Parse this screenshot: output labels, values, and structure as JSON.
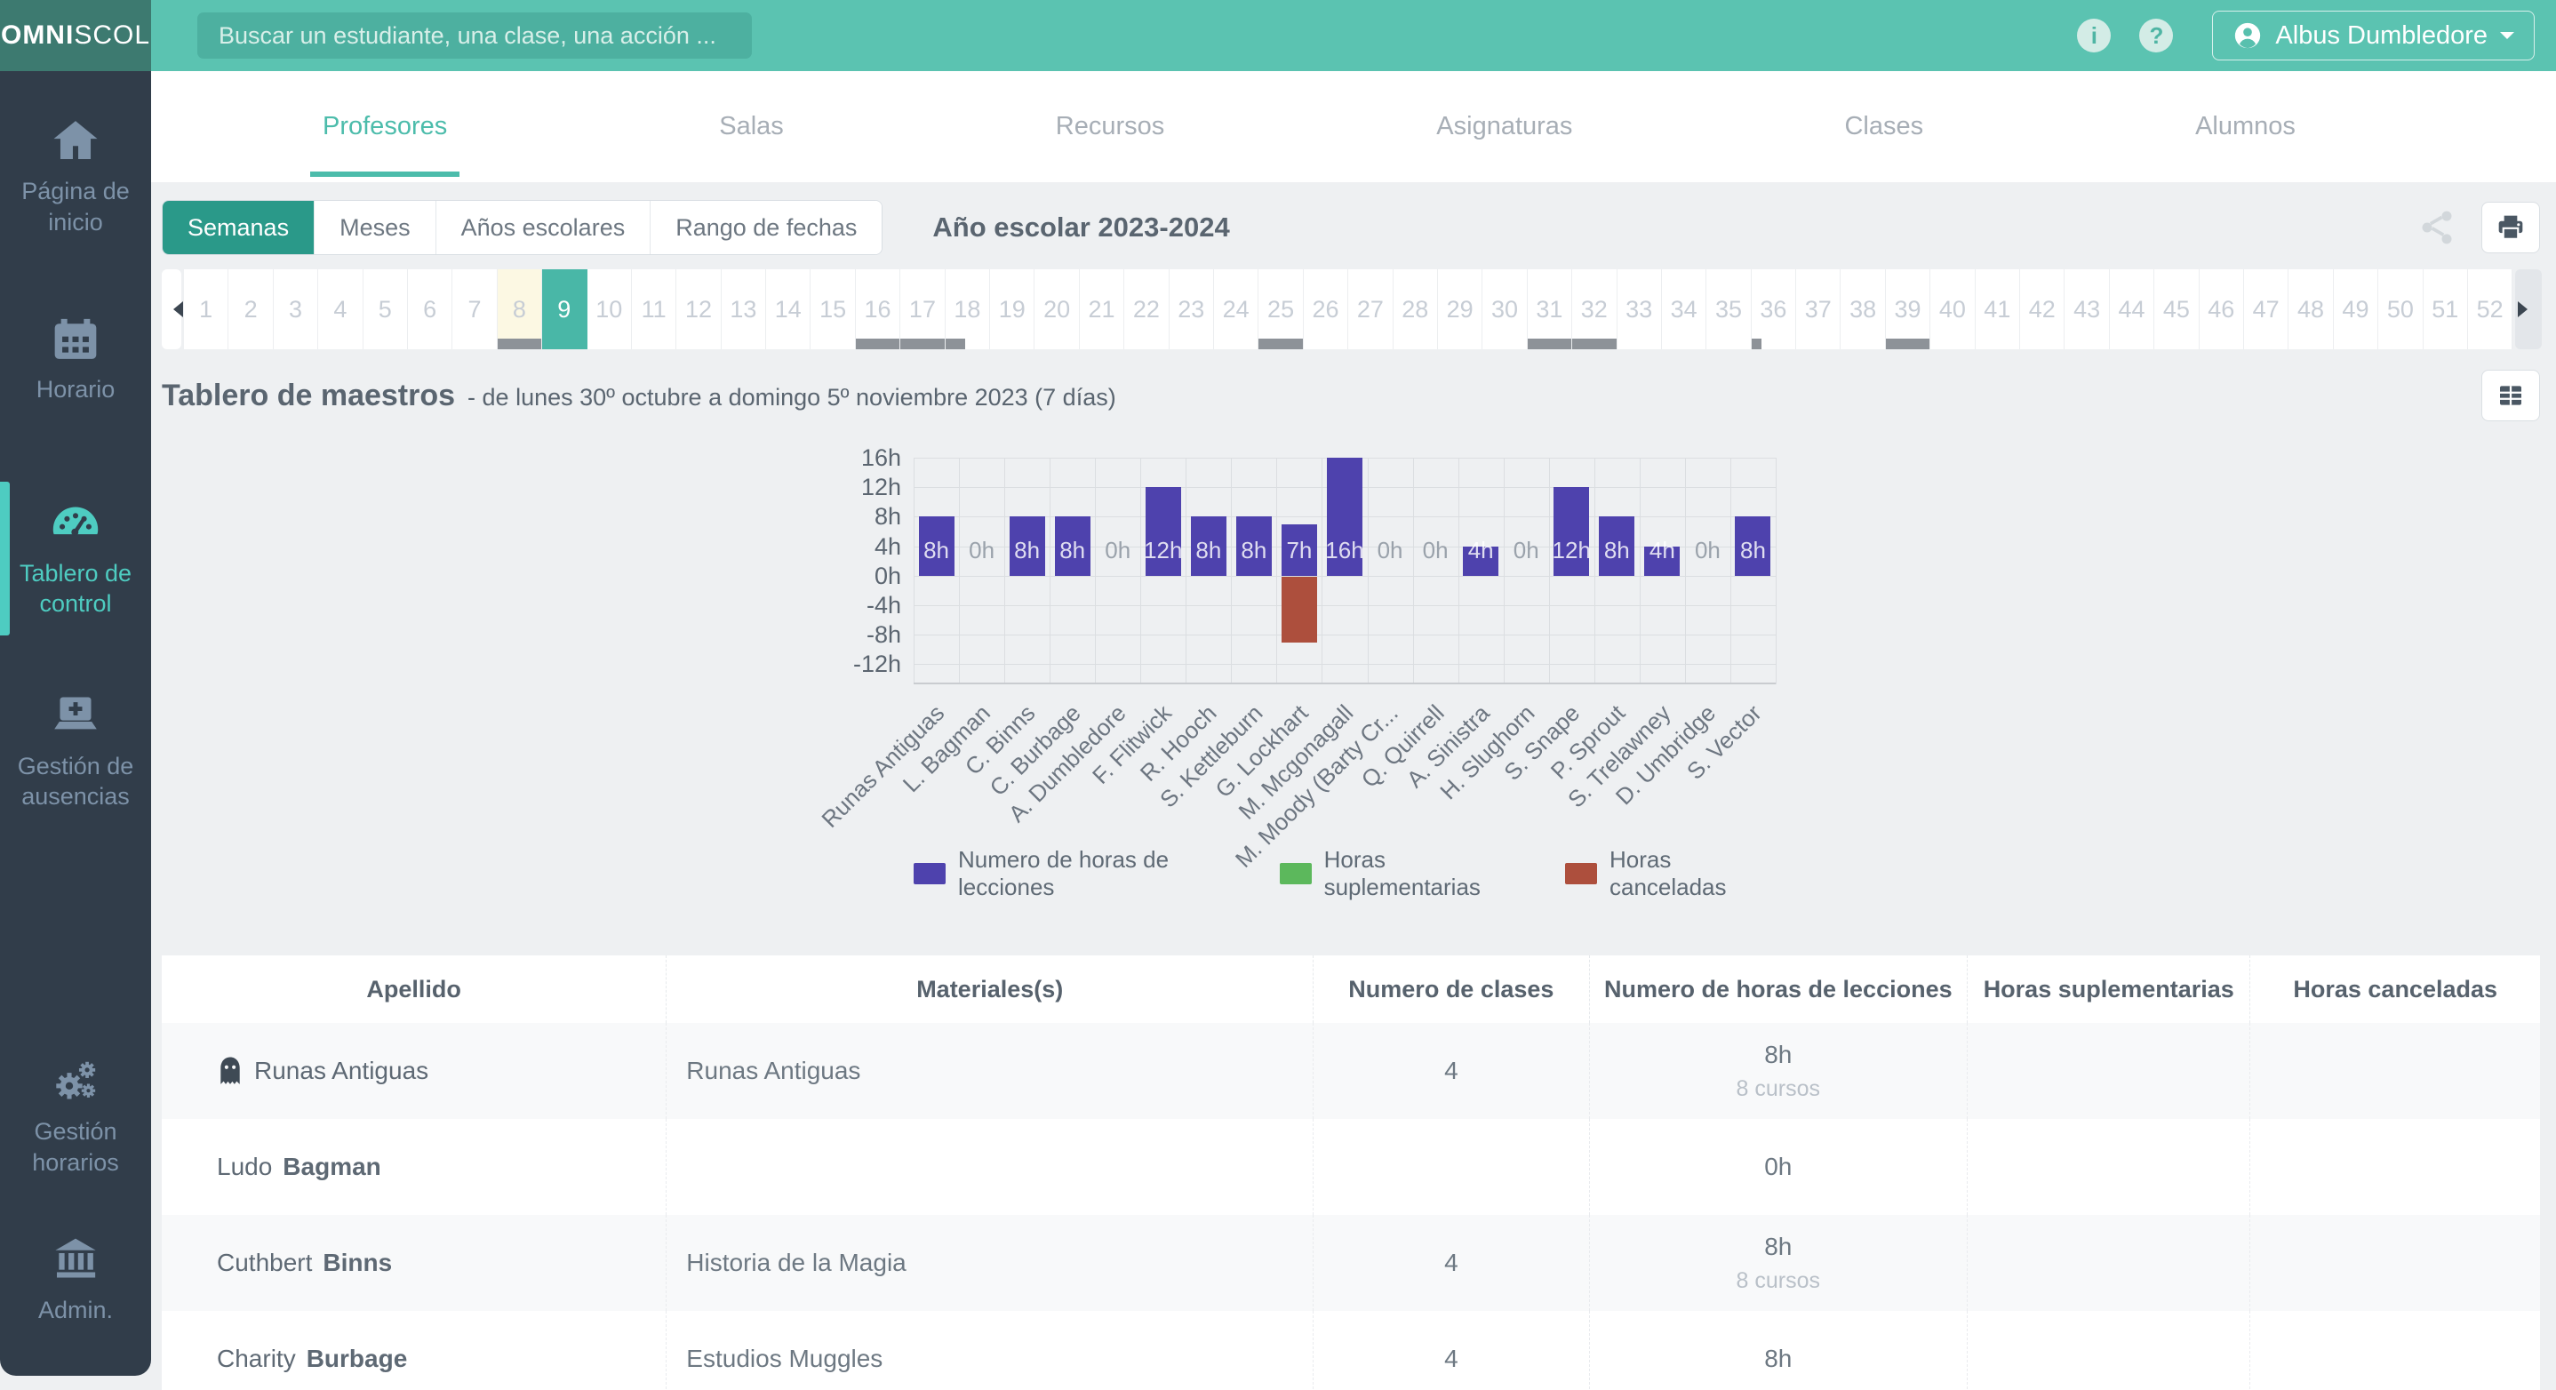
{
  "header": {
    "logo": {
      "bold": "OMNI",
      "light": "SCOL"
    },
    "search": {
      "placeholder": "Buscar un estudiante, una clase, una acción ..."
    },
    "user": {
      "name": "Albus Dumbledore"
    },
    "info_symbol": "i",
    "help_symbol": "?"
  },
  "sidebar": {
    "items": [
      {
        "label": "Página de inicio",
        "icon": "home",
        "active": false
      },
      {
        "label": "Horario",
        "icon": "calendar",
        "active": false
      },
      {
        "label": "Tablero de control",
        "icon": "dashboard-gauge",
        "active": true
      },
      {
        "label": "Gestión de ausencias",
        "icon": "laptop-plus",
        "active": false
      },
      {
        "label": "Gestión horarios",
        "icon": "gears",
        "active": false
      },
      {
        "label": "Admin.",
        "icon": "bank",
        "active": false
      }
    ]
  },
  "nav_tabs": [
    {
      "label": "Profesores",
      "active": true
    },
    {
      "label": "Salas",
      "active": false
    },
    {
      "label": "Recursos",
      "active": false
    },
    {
      "label": "Asignaturas",
      "active": false
    },
    {
      "label": "Clases",
      "active": false
    },
    {
      "label": "Alumnos",
      "active": false
    }
  ],
  "period_controls": {
    "buttons": [
      {
        "label": "Semanas",
        "active": true
      },
      {
        "label": "Meses",
        "active": false
      },
      {
        "label": "Años escolares",
        "active": false
      },
      {
        "label": "Rango de fechas",
        "active": false
      }
    ],
    "school_year": "Año escolar 2023-2024"
  },
  "week_strip": {
    "total_weeks": 52,
    "selected_week": 9,
    "holiday_weeks": [
      8
    ],
    "marked_weeks": [
      8,
      16,
      17,
      25,
      31,
      32,
      39
    ],
    "partial_marked_weeks": [
      {
        "week": 18,
        "width_percent": 45
      },
      {
        "week": 36,
        "width_percent": 22
      }
    ]
  },
  "dashboard": {
    "title": "Tablero de maestros",
    "subtitle": "- de lunes 30º octubre a domingo 5º noviembre 2023 (7 días)"
  },
  "chart_data": {
    "type": "bar",
    "categories": [
      "Runas Antiguas",
      "L. Bagman",
      "C. Binns",
      "C. Burbage",
      "A. Dumbledore",
      "F. Flitwick",
      "R. Hooch",
      "S. Kettleburn",
      "G. Lockhart",
      "M. Mcgonagall",
      "M. Moody (Barty Cr...",
      "Q. Quirrell",
      "A. Sinistra",
      "H. Slughorn",
      "S. Snape",
      "P. Sprout",
      "S. Trelawney",
      "D. Umbridge",
      "S. Vector"
    ],
    "series": [
      {
        "name": "Numero de horas de lecciones",
        "color": "#4e42ad",
        "values": [
          8,
          0,
          8,
          8,
          0,
          12,
          8,
          8,
          7,
          16,
          0,
          0,
          4,
          0,
          12,
          8,
          4,
          0,
          8
        ]
      },
      {
        "name": "Horas suplementarias",
        "color": "#5cb85c",
        "values": [
          0,
          0,
          0,
          0,
          0,
          0,
          0,
          0,
          0,
          0,
          0,
          0,
          0,
          0,
          0,
          0,
          0,
          0,
          0
        ]
      },
      {
        "name": "Horas canceladas",
        "color": "#ad4f3d",
        "values": [
          0,
          0,
          0,
          0,
          0,
          0,
          0,
          0,
          -9,
          0,
          0,
          0,
          0,
          0,
          0,
          0,
          0,
          0,
          0
        ]
      }
    ],
    "bar_value_labels": [
      "8h",
      "0h",
      "8h",
      "8h",
      "0h",
      "12h",
      "8h",
      "8h",
      "7h",
      "16h",
      "0h",
      "0h",
      "4h",
      "0h",
      "12h",
      "8h",
      "4h",
      "0h",
      "8h"
    ],
    "y_ticks": [
      "16h",
      "12h",
      "8h",
      "4h",
      "0h",
      "-4h",
      "-8h",
      "-12h"
    ],
    "ylim": [
      -12,
      16
    ],
    "ytick_step": 4,
    "grid": true,
    "legend_position": "bottom"
  },
  "teacher_table": {
    "columns": [
      "Apellido",
      "Materiales(s)",
      "Numero de clases",
      "Numero de horas de lecciones",
      "Horas suplementarias",
      "Horas canceladas"
    ],
    "rows": [
      {
        "ghost": true,
        "first": "Runas Antiguas",
        "last": "",
        "materials": "Runas Antiguas",
        "classes": "4",
        "lesson_hours": "8h",
        "courses": "8 cursos",
        "extra_hours": "",
        "cancelled_hours": ""
      },
      {
        "ghost": false,
        "first": "Ludo",
        "last": "Bagman",
        "materials": "",
        "classes": "",
        "lesson_hours": "0h",
        "courses": "",
        "extra_hours": "",
        "cancelled_hours": ""
      },
      {
        "ghost": false,
        "first": "Cuthbert",
        "last": "Binns",
        "materials": "Historia de la Magia",
        "classes": "4",
        "lesson_hours": "8h",
        "courses": "8 cursos",
        "extra_hours": "",
        "cancelled_hours": ""
      },
      {
        "ghost": false,
        "first": "Charity",
        "last": "Burbage",
        "materials": "Estudios Muggles",
        "classes": "4",
        "lesson_hours": "8h",
        "courses": "",
        "extra_hours": "",
        "cancelled_hours": ""
      }
    ]
  },
  "colors": {
    "header_teal": "#5bc3b1",
    "logo_teal": "#3d7a70",
    "sidebar_bg": "#313d4a",
    "sidebar_active": "#4eccc1",
    "tab_active": "#4cbcab",
    "period_active": "#2a9989",
    "week_selected": "#49b7a7",
    "week_holiday": "#fcf8e3",
    "week_marker": "#8d9298",
    "lessons_purple": "#4e42ad",
    "supplementary_green": "#5cb85c",
    "cancelled_red": "#ad4f3d",
    "page_bg": "#eef0f2"
  }
}
